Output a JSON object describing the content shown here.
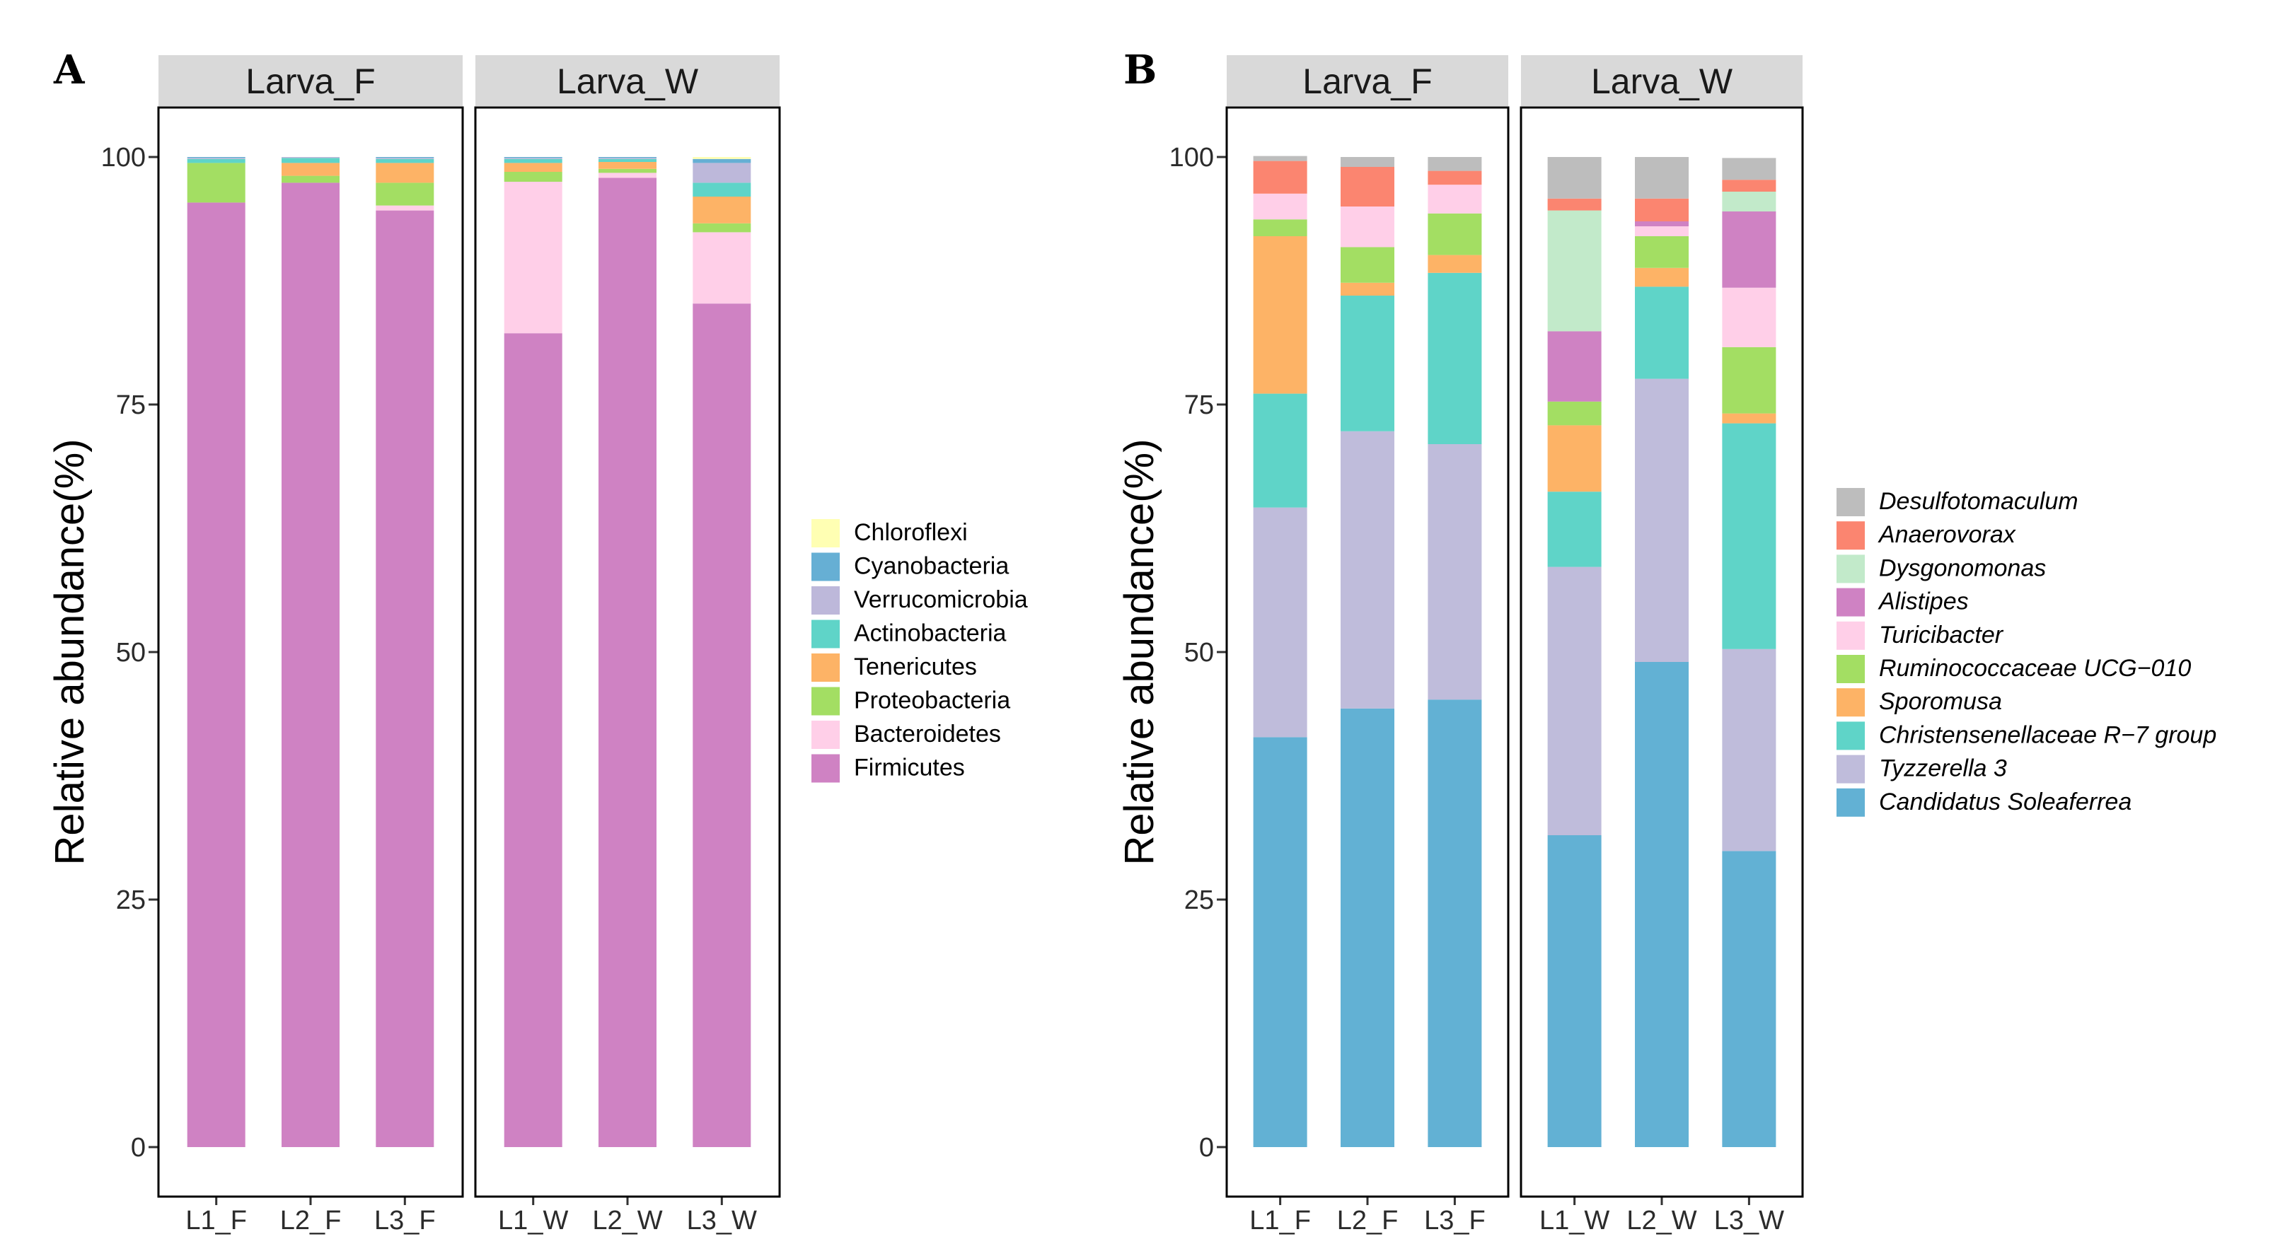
{
  "chart_data": [
    {
      "panel": "A",
      "type": "stacked-bar",
      "ylabel": "Relative abundance(%)",
      "ylim": [
        0,
        100
      ],
      "yticks": [
        0,
        25,
        50,
        75,
        100
      ],
      "italic_legend": false,
      "facets": [
        {
          "label": "Larva_F",
          "categories": [
            "L1_F",
            "L2_F",
            "L3_F"
          ]
        },
        {
          "label": "Larva_W",
          "categories": [
            "L1_W",
            "L2_W",
            "L3_W"
          ]
        }
      ],
      "series": [
        {
          "name": "Firmicutes",
          "color": "#CF82C3",
          "values": [
            95.4,
            97.4,
            94.6,
            82.2,
            97.9,
            85.2
          ]
        },
        {
          "name": "Bacteroidetes",
          "color": "#FFCFE8",
          "values": [
            0.0,
            0.0,
            0.5,
            15.3,
            0.5,
            7.2
          ]
        },
        {
          "name": "Proteobacteria",
          "color": "#A3DE63",
          "values": [
            4.0,
            0.7,
            2.3,
            1.0,
            0.4,
            0.9
          ]
        },
        {
          "name": "Tenericutes",
          "color": "#FDB366",
          "values": [
            0.0,
            1.3,
            2.0,
            0.9,
            0.7,
            2.7
          ]
        },
        {
          "name": "Actinobacteria",
          "color": "#5FD4C8",
          "values": [
            0.4,
            0.5,
            0.4,
            0.4,
            0.3,
            1.4
          ]
        },
        {
          "name": "Verrucomicrobia",
          "color": "#BDB8DA",
          "values": [
            0.1,
            0.1,
            0.1,
            0.1,
            0.1,
            2.0
          ]
        },
        {
          "name": "Cyanobacteria",
          "color": "#66AFD4",
          "values": [
            0.1,
            0.0,
            0.1,
            0.1,
            0.1,
            0.4
          ]
        },
        {
          "name": "Chloroflexi",
          "color": "#FFFFB3",
          "values": [
            0.0,
            0.0,
            0.0,
            0.0,
            0.0,
            0.2
          ]
        }
      ]
    },
    {
      "panel": "B",
      "type": "stacked-bar",
      "ylabel": "Relative abundance(%)",
      "ylim": [
        0,
        100
      ],
      "yticks": [
        0,
        25,
        50,
        75,
        100
      ],
      "italic_legend": true,
      "facets": [
        {
          "label": "Larva_F",
          "categories": [
            "L1_F",
            "L2_F",
            "L3_F"
          ]
        },
        {
          "label": "Larva_W",
          "categories": [
            "L1_W",
            "L2_W",
            "L3_W"
          ]
        }
      ],
      "series": [
        {
          "name": "Candidatus Soleaferrea",
          "color": "#62B1D4",
          "values": [
            41.4,
            44.3,
            45.2,
            31.5,
            49.0,
            29.9
          ]
        },
        {
          "name": "Tyzzerella 3",
          "color": "#BFBCDB",
          "values": [
            23.2,
            28.0,
            25.8,
            27.1,
            28.6,
            20.4
          ]
        },
        {
          "name": "Christensenellaceae R−7 group",
          "color": "#5FD4C8",
          "values": [
            11.5,
            13.7,
            17.3,
            7.6,
            9.3,
            22.8
          ]
        },
        {
          "name": "Sporomusa",
          "color": "#FDB366",
          "values": [
            15.9,
            1.3,
            1.8,
            6.7,
            1.9,
            1.0
          ]
        },
        {
          "name": "Ruminococcaceae UCG−010",
          "color": "#A3DE63",
          "values": [
            1.7,
            3.6,
            4.2,
            2.4,
            3.2,
            6.7
          ]
        },
        {
          "name": "Turicibacter",
          "color": "#FFCFE8",
          "values": [
            2.6,
            4.1,
            2.9,
            0.0,
            1.0,
            6.0
          ]
        },
        {
          "name": "Alistipes",
          "color": "#CF82C3",
          "values": [
            0.0,
            0.0,
            0.0,
            7.1,
            0.5,
            7.7
          ]
        },
        {
          "name": "Dysgonomonas",
          "color": "#C2EACA",
          "values": [
            0.0,
            0.0,
            0.0,
            12.2,
            0.0,
            2.0
          ]
        },
        {
          "name": "Anaerovorax",
          "color": "#FB8570",
          "values": [
            3.3,
            4.0,
            1.4,
            1.2,
            2.3,
            1.2
          ]
        },
        {
          "name": "Desulfotomaculum",
          "color": "#BDBDBD",
          "values": [
            0.5,
            1.0,
            1.4,
            4.2,
            4.2,
            2.2
          ]
        }
      ]
    }
  ]
}
